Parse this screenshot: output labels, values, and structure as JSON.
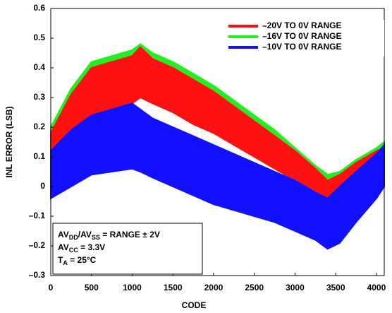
{
  "chart_data": {
    "type": "band",
    "xlabel": "CODE",
    "ylabel": "INL ERROR (LSB)",
    "x": [
      0,
      250,
      500,
      750,
      1000,
      1100,
      1250,
      1500,
      1750,
      2000,
      2250,
      2500,
      2750,
      3000,
      3250,
      3400,
      3550,
      3750,
      4000,
      4096
    ],
    "series": [
      {
        "name": "–16V TO 0V RANGE",
        "color": "#22ee22",
        "low": [
          0.1,
          0.19,
          0.25,
          0.28,
          0.3,
          0.33,
          0.31,
          0.28,
          0.24,
          0.2,
          0.16,
          0.12,
          0.08,
          0.03,
          -0.01,
          -0.03,
          -0.01,
          0.02,
          0.04,
          0.05
        ],
        "high": [
          0.2,
          0.33,
          0.42,
          0.44,
          0.46,
          0.48,
          0.45,
          0.42,
          0.38,
          0.34,
          0.29,
          0.24,
          0.19,
          0.13,
          0.07,
          0.04,
          0.05,
          0.09,
          0.13,
          0.15
        ]
      },
      {
        "name": "–20V TO 0V RANGE",
        "color": "#ff1111",
        "low": [
          0.08,
          0.16,
          0.22,
          0.26,
          0.28,
          0.3,
          0.28,
          0.25,
          0.21,
          0.18,
          0.14,
          0.1,
          0.06,
          0.02,
          -0.02,
          -0.04,
          -0.02,
          0.01,
          0.03,
          0.04
        ],
        "high": [
          0.18,
          0.31,
          0.4,
          0.42,
          0.44,
          0.47,
          0.43,
          0.4,
          0.36,
          0.32,
          0.27,
          0.22,
          0.17,
          0.12,
          0.06,
          0.02,
          0.04,
          0.08,
          0.12,
          0.13
        ]
      },
      {
        "name": "–10V TO 0V RANGE",
        "color": "#1111ff",
        "low": [
          -0.04,
          0.0,
          0.04,
          0.05,
          0.06,
          0.05,
          0.03,
          0.0,
          -0.03,
          -0.06,
          -0.08,
          -0.1,
          -0.12,
          -0.15,
          -0.18,
          -0.21,
          -0.19,
          -0.12,
          -0.04,
          0.0
        ],
        "high": [
          0.12,
          0.19,
          0.24,
          0.26,
          0.28,
          0.26,
          0.23,
          0.2,
          0.17,
          0.14,
          0.11,
          0.08,
          0.05,
          0.02,
          -0.02,
          -0.04,
          0.0,
          0.05,
          0.11,
          0.14
        ]
      }
    ],
    "legend_order": [
      1,
      0,
      2
    ],
    "annotations": [
      [
        "AV",
        "DD",
        "/AV",
        "SS",
        " = RANGE ± 2V"
      ],
      [
        "AV",
        "CC",
        " = 3.3V"
      ],
      [
        "T",
        "A",
        " = 25°C"
      ]
    ],
    "xlim": [
      0,
      4096
    ],
    "xticks": [
      0,
      500,
      1000,
      1500,
      2000,
      2500,
      3000,
      3500,
      4000
    ],
    "ylim": [
      -0.3,
      0.6
    ],
    "yticks": [
      {
        "value": -0.3,
        "label": "–0.3"
      },
      {
        "value": -0.2,
        "label": "–0.2"
      },
      {
        "value": -0.1,
        "label": "–0.1"
      },
      0,
      0.1,
      0.2,
      0.3,
      0.4,
      0.5,
      0.6
    ],
    "grid": false,
    "legend": "upper right"
  }
}
